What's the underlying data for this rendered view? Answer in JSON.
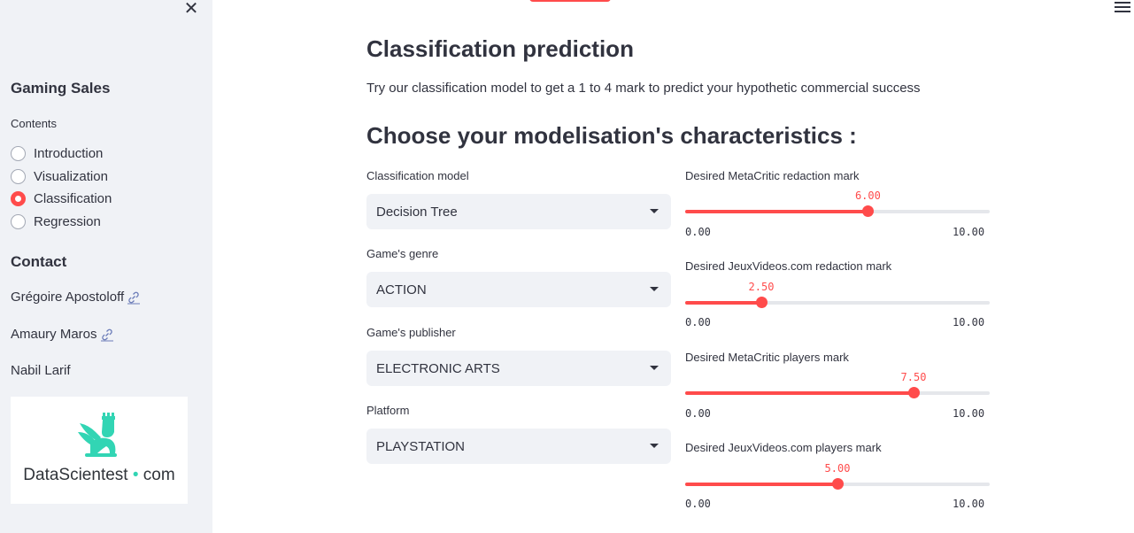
{
  "sidebar": {
    "close_label": "✕",
    "title": "Gaming Sales",
    "contents_label": "Contents",
    "nav": [
      {
        "label": "Introduction",
        "selected": false
      },
      {
        "label": "Visualization",
        "selected": false
      },
      {
        "label": "Classification",
        "selected": true
      },
      {
        "label": "Regression",
        "selected": false
      }
    ],
    "contact_title": "Contact",
    "contacts": [
      {
        "name": "Grégoire Apostoloff",
        "icon": "link-icon"
      },
      {
        "name": "Amaury Maros",
        "icon": "link-icon"
      },
      {
        "name": "Nabil Larif",
        "icon": ""
      }
    ],
    "logo": {
      "brand": "DataScientest",
      "dot": "•",
      "suffix": "com",
      "color": "#32d5b4"
    }
  },
  "main": {
    "title": "Classification prediction",
    "description": "Try our classification model to get a 1 to 4 mark to predict your hypothetic commercial success",
    "section_title": "Choose your modelisation's characteristics :",
    "selects": [
      {
        "label": "Classification model",
        "value": "Decision Tree"
      },
      {
        "label": "Game's genre",
        "value": "ACTION"
      },
      {
        "label": "Game's publisher",
        "value": "ELECTRONIC ARTS"
      },
      {
        "label": "Platform",
        "value": "PLAYSTATION"
      }
    ],
    "sliders": [
      {
        "label": "Desired MetaCritic redaction mark",
        "value": 6.0,
        "value_text": "6.00",
        "min_text": "0.00",
        "max_text": "10.00",
        "min": 0,
        "max": 10
      },
      {
        "label": "Desired JeuxVideos.com redaction mark",
        "value": 2.5,
        "value_text": "2.50",
        "min_text": "0.00",
        "max_text": "10.00",
        "min": 0,
        "max": 10
      },
      {
        "label": "Desired MetaCritic players mark",
        "value": 7.5,
        "value_text": "7.50",
        "min_text": "0.00",
        "max_text": "10.00",
        "min": 0,
        "max": 10
      },
      {
        "label": "Desired JeuxVideos.com players mark",
        "value": 5.0,
        "value_text": "5.00",
        "min_text": "0.00",
        "max_text": "10.00",
        "min": 0,
        "max": 10
      }
    ]
  },
  "colors": {
    "accent": "#ff4b4b",
    "sidebar_bg": "#f0f2f6",
    "text": "#31333f"
  }
}
